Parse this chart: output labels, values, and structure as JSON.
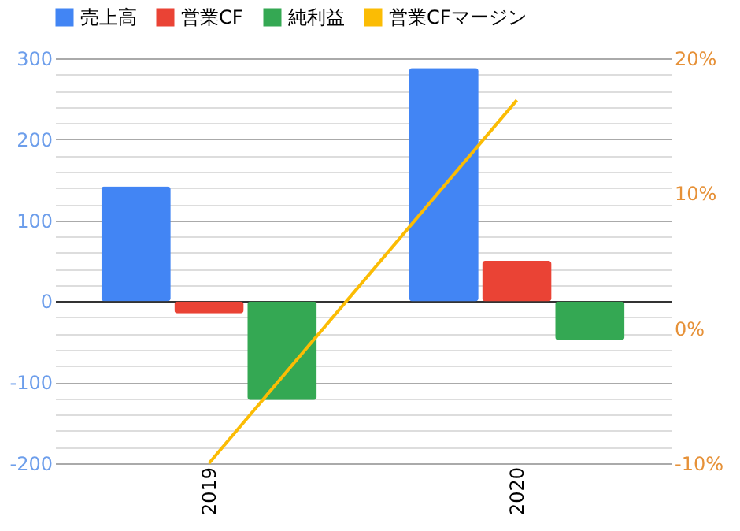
{
  "chart_data": {
    "type": "bar",
    "categories": [
      "2019",
      "2020"
    ],
    "series": [
      {
        "name": "売上高",
        "color": "#4285f4",
        "values": [
          142,
          288
        ]
      },
      {
        "name": "営業CF",
        "color": "#ea4335",
        "values": [
          -15,
          50
        ]
      },
      {
        "name": "純利益",
        "color": "#34a853",
        "values": [
          -122,
          -48
        ]
      },
      {
        "name": "営業CFマージン",
        "color": "#fbbc04",
        "type": "line",
        "axis": "y2",
        "values": [
          -10,
          16.9
        ]
      }
    ],
    "ylim": [
      -200,
      300
    ],
    "yticks": [
      -200,
      {
        "value": -180,
        "label": null
      },
      {
        "value": -160,
        "label": null
      },
      {
        "value": -140,
        "label": null
      },
      {
        "value": -120,
        "label": null
      },
      -100,
      {
        "value": -80,
        "label": null
      },
      {
        "value": -60,
        "label": null
      },
      {
        "value": -40,
        "label": null
      },
      {
        "value": -20,
        "label": null
      },
      0,
      {
        "value": 20,
        "label": null
      },
      {
        "value": 40,
        "label": null
      },
      {
        "value": 60,
        "label": null
      },
      {
        "value": 80,
        "label": null
      },
      100,
      {
        "value": 120,
        "label": null
      },
      {
        "value": 140,
        "label": null
      },
      {
        "value": 160,
        "label": null
      },
      {
        "value": 180,
        "label": null
      },
      200,
      {
        "value": 220,
        "label": null
      },
      {
        "value": 240,
        "label": null
      },
      {
        "value": 260,
        "label": null
      },
      {
        "value": 280,
        "label": null
      },
      300
    ],
    "y2lim": [
      -10,
      20
    ],
    "y2ticks": [
      {
        "value": -10,
        "label": "-10%"
      },
      {
        "value": 0,
        "label": "0%"
      },
      {
        "value": 10,
        "label": "10%"
      },
      {
        "value": 20,
        "label": "20%"
      }
    ],
    "grid": "y",
    "legend": "top"
  }
}
